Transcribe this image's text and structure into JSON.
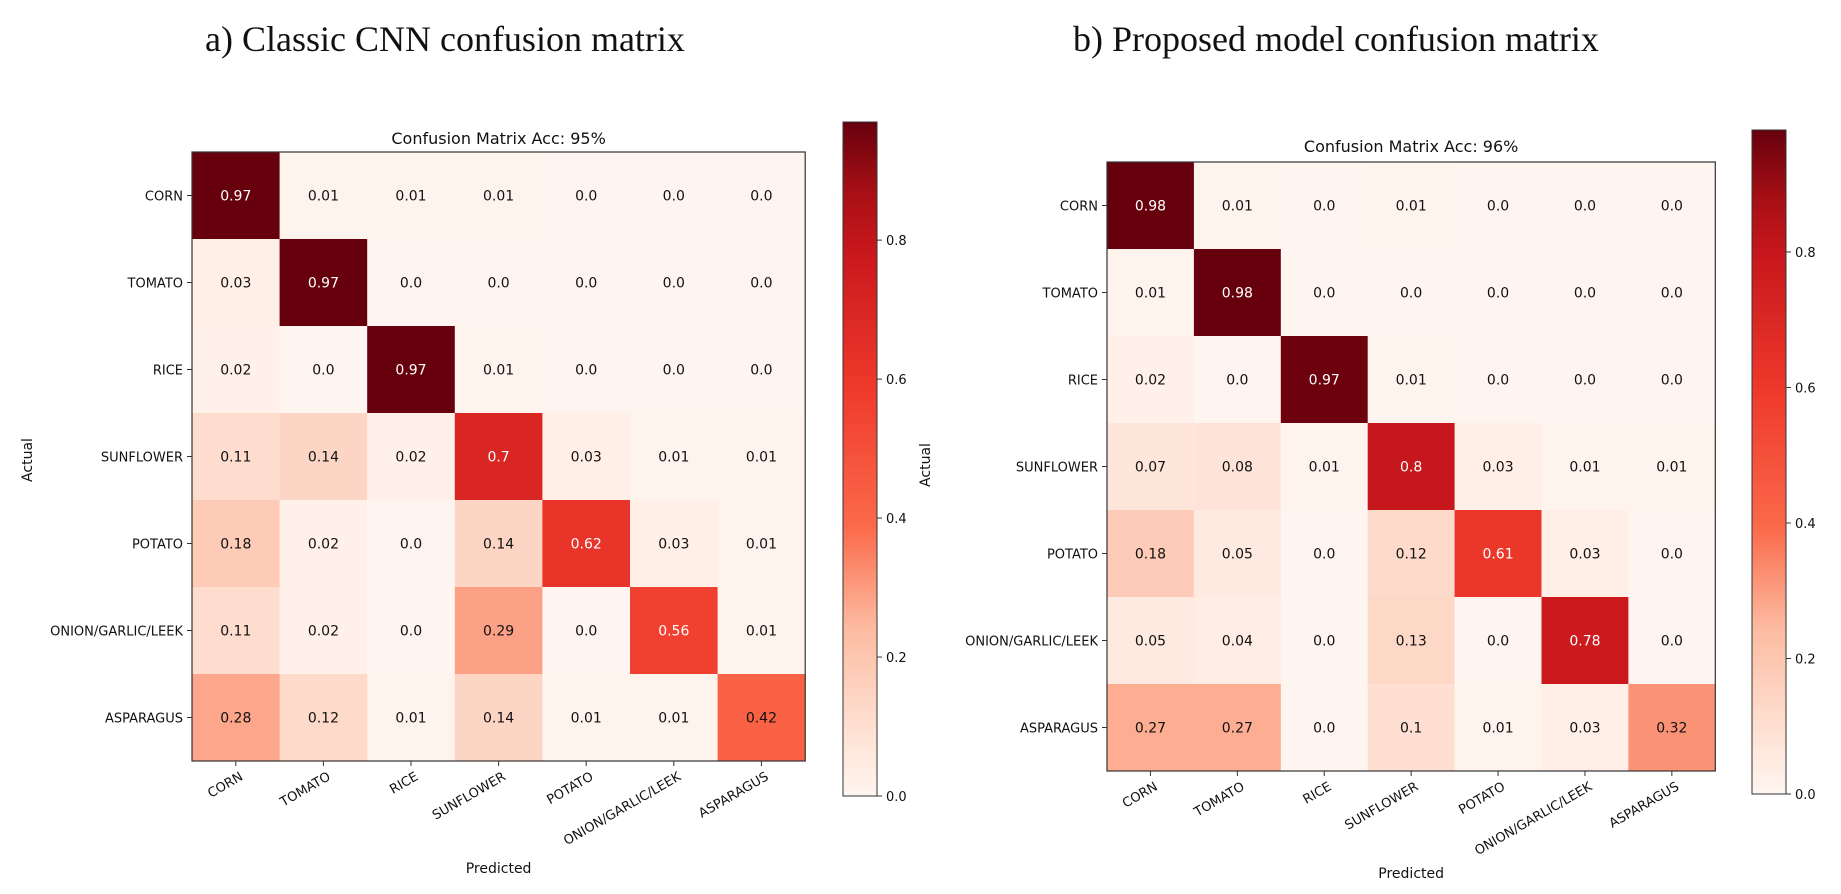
{
  "panels": [
    {
      "title": "a) Classic CNN confusion matrix"
    },
    {
      "title": "b) Proposed model confusion matrix"
    }
  ],
  "colors": {
    "cmap_low": "#fff5f0",
    "cmap_mid": "#fb6a4a",
    "cmap_red": "#ef3b2c",
    "cmap_high": "#67000d",
    "axis": "#333333"
  },
  "chart_data": [
    {
      "type": "heatmap",
      "title": "Confusion Matrix Acc: 95%",
      "xlabel": "Predicted",
      "ylabel": "Actual",
      "categories": [
        "CORN",
        "TOMATO",
        "RICE",
        "SUNFLOWER",
        "POTATO",
        "ONION/GARLIC/LEEK",
        "ASPARAGUS"
      ],
      "values": [
        [
          "0.97",
          "0.01",
          "0.01",
          "0.01",
          "0.0",
          "0.0",
          "0.0"
        ],
        [
          "0.03",
          "0.97",
          "0.0",
          "0.0",
          "0.0",
          "0.0",
          "0.0"
        ],
        [
          "0.02",
          "0.0",
          "0.97",
          "0.01",
          "0.0",
          "0.0",
          "0.0"
        ],
        [
          "0.11",
          "0.14",
          "0.02",
          "0.7",
          "0.03",
          "0.01",
          "0.01"
        ],
        [
          "0.18",
          "0.02",
          "0.0",
          "0.14",
          "0.62",
          "0.03",
          "0.01"
        ],
        [
          "0.11",
          "0.02",
          "0.0",
          "0.29",
          "0.0",
          "0.56",
          "0.01"
        ],
        [
          "0.28",
          "0.12",
          "0.01",
          "0.14",
          "0.01",
          "0.01",
          "0.42"
        ]
      ],
      "colorbar": {
        "ticks": [
          "0.0",
          "0.2",
          "0.4",
          "0.6",
          "0.8"
        ],
        "range": [
          0,
          0.97
        ]
      }
    },
    {
      "type": "heatmap",
      "title": "Confusion Matrix Acc: 96%",
      "xlabel": "Predicted",
      "ylabel": "Actual",
      "categories": [
        "CORN",
        "TOMATO",
        "RICE",
        "SUNFLOWER",
        "POTATO",
        "ONION/GARLIC/LEEK",
        "ASPARAGUS"
      ],
      "values": [
        [
          "0.98",
          "0.01",
          "0.0",
          "0.01",
          "0.0",
          "0.0",
          "0.0"
        ],
        [
          "0.01",
          "0.98",
          "0.0",
          "0.0",
          "0.0",
          "0.0",
          "0.0"
        ],
        [
          "0.02",
          "0.0",
          "0.97",
          "0.01",
          "0.0",
          "0.0",
          "0.0"
        ],
        [
          "0.07",
          "0.08",
          "0.01",
          "0.8",
          "0.03",
          "0.01",
          "0.01"
        ],
        [
          "0.18",
          "0.05",
          "0.0",
          "0.12",
          "0.61",
          "0.03",
          "0.0"
        ],
        [
          "0.05",
          "0.04",
          "0.0",
          "0.13",
          "0.0",
          "0.78",
          "0.0"
        ],
        [
          "0.27",
          "0.27",
          "0.0",
          "0.1",
          "0.01",
          "0.03",
          "0.32"
        ]
      ],
      "colorbar": {
        "ticks": [
          "0.0",
          "0.2",
          "0.4",
          "0.6",
          "0.8"
        ],
        "range": [
          0,
          0.98
        ]
      }
    }
  ]
}
